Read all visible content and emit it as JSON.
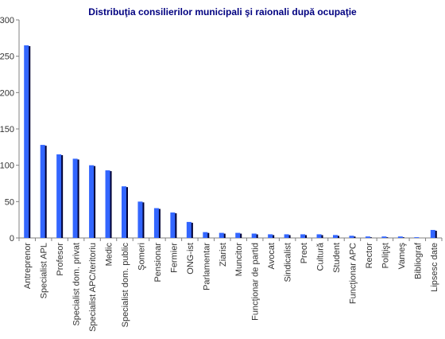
{
  "chart_data": {
    "type": "bar",
    "title": "Distribuţia consilierilor municipali şi raionali după ocupaţie",
    "xlabel": "",
    "ylabel": "",
    "ylim": [
      0,
      300
    ],
    "yticks": [
      0,
      50,
      100,
      150,
      200,
      250,
      300
    ],
    "grid": false,
    "legend": "none",
    "categories": [
      "Antreprenor",
      "Specialist APL",
      "Profesor",
      "Specialist dom. privat",
      "Specialist APC/teritoriu",
      "Medic",
      "Specialist dom. public",
      "Şomeri",
      "Pensionar",
      "Fermier",
      "ONG-ist",
      "Parlamentar",
      "Ziarist",
      "Muncitor",
      "Funcţionar de partid",
      "Avocat",
      "Sindicalist",
      "Preot",
      "Cultură",
      "Student",
      "Funcţionar APC",
      "Rector",
      "Poliţişt",
      "Vameş",
      "Bibliograf",
      "Lipsesc date"
    ],
    "values": [
      265,
      128,
      115,
      109,
      100,
      93,
      71,
      50,
      41,
      35,
      22,
      8,
      7,
      7,
      6,
      5,
      5,
      5,
      5,
      4,
      3,
      2,
      2,
      2,
      1,
      11
    ],
    "colors": {
      "bar": "#3366ff",
      "shadow": "#000033",
      "axis": "#808080",
      "title": "#000080"
    }
  }
}
